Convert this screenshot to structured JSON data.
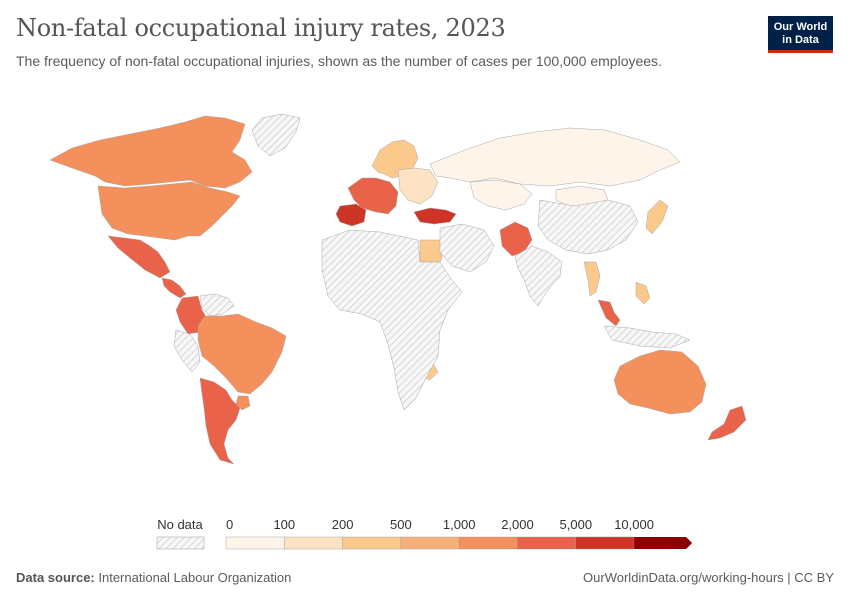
{
  "header": {
    "title": "Non-fatal occupational injury rates, 2023",
    "subtitle": "The frequency of non-fatal occupational injuries, shown as the number of cases per 100,000 employees."
  },
  "logo": {
    "line1": "Our World",
    "line2": "in Data",
    "bg": "#002147",
    "accent": "#ce261e"
  },
  "legend": {
    "no_data_label": "No data",
    "bins": [
      {
        "label": "0",
        "color": "#fef4ea"
      },
      {
        "label": "100",
        "color": "#fde2c3"
      },
      {
        "label": "200",
        "color": "#fbc98c"
      },
      {
        "label": "500",
        "color": "#f7b07a"
      },
      {
        "label": "1,000",
        "color": "#f4905b"
      },
      {
        "label": "2,000",
        "color": "#e8634a"
      },
      {
        "label": "5,000",
        "color": "#cf3526"
      },
      {
        "label": "10,000",
        "color": "#a50f0f"
      }
    ],
    "last_color": "#8b0000"
  },
  "footer": {
    "source_label": "Data source:",
    "source_value": "International Labour Organization",
    "url": "OurWorldinData.org/working-hours | CC BY"
  },
  "chart_data": {
    "type": "choropleth",
    "title": "Non-fatal occupational injury rates, 2023",
    "unit": "cases per 100,000 employees",
    "bins": [
      0,
      100,
      200,
      500,
      1000,
      2000,
      5000,
      10000
    ],
    "regions": [
      {
        "name": "Canada",
        "bin": 4
      },
      {
        "name": "United States",
        "bin": 4
      },
      {
        "name": "Mexico",
        "bin": 5
      },
      {
        "name": "Central America",
        "bin": 5
      },
      {
        "name": "Colombia",
        "bin": 5
      },
      {
        "name": "Brazil",
        "bin": 4
      },
      {
        "name": "Argentina",
        "bin": 5
      },
      {
        "name": "Uruguay",
        "bin": 4
      },
      {
        "name": "Western Europe",
        "bin": 5
      },
      {
        "name": "Spain",
        "bin": 6
      },
      {
        "name": "Scandinavia",
        "bin": 2
      },
      {
        "name": "Eastern Europe",
        "bin": 1
      },
      {
        "name": "Turkey",
        "bin": 6
      },
      {
        "name": "Egypt",
        "bin": 2
      },
      {
        "name": "Russia",
        "bin": 0
      },
      {
        "name": "Kazakhstan",
        "bin": 0
      },
      {
        "name": "Mongolia",
        "bin": 0
      },
      {
        "name": "Pakistan",
        "bin": 5
      },
      {
        "name": "Japan",
        "bin": 2
      },
      {
        "name": "Thailand",
        "bin": 2
      },
      {
        "name": "Malaysia",
        "bin": 5
      },
      {
        "name": "Philippines",
        "bin": 2
      },
      {
        "name": "Botswana",
        "bin": 2
      },
      {
        "name": "Australia",
        "bin": 4
      },
      {
        "name": "New Zealand",
        "bin": 5
      },
      {
        "name": "Greenland",
        "bin": null
      },
      {
        "name": "Africa (most)",
        "bin": null
      },
      {
        "name": "China",
        "bin": null
      },
      {
        "name": "India",
        "bin": null
      },
      {
        "name": "Middle East",
        "bin": null
      },
      {
        "name": "Venezuela",
        "bin": null
      },
      {
        "name": "Peru",
        "bin": null
      },
      {
        "name": "Indonesia",
        "bin": null
      }
    ]
  }
}
